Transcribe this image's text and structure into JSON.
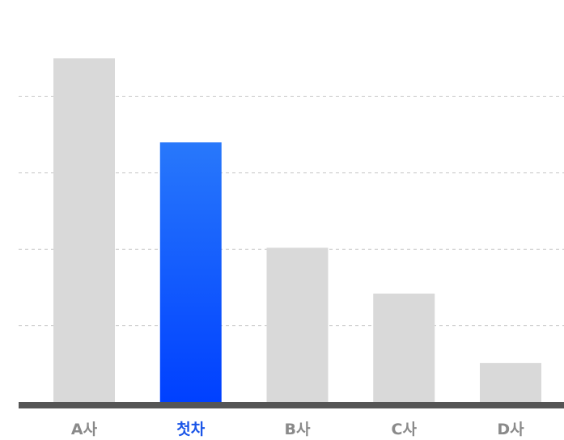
{
  "chart_data": {
    "type": "bar",
    "title": "",
    "xlabel": "",
    "ylabel": "",
    "categories": [
      "A사",
      "첫차",
      "B사",
      "C사",
      "D사"
    ],
    "values": [
      45,
      34,
      20.2,
      14.2,
      5.1
    ],
    "ylim": [
      0,
      50
    ],
    "grid": true,
    "legend": "none",
    "highlight_category": "첫차",
    "colors": {
      "bar_default": "#d9d9d9",
      "bar_highlight_top": "#2878fb",
      "bar_highlight_bottom": "#0040ff",
      "label_default": "#8a8a8a",
      "label_highlight": "#1a55e8",
      "gridline": "#c9c9c9",
      "baseline": "#555555"
    }
  }
}
